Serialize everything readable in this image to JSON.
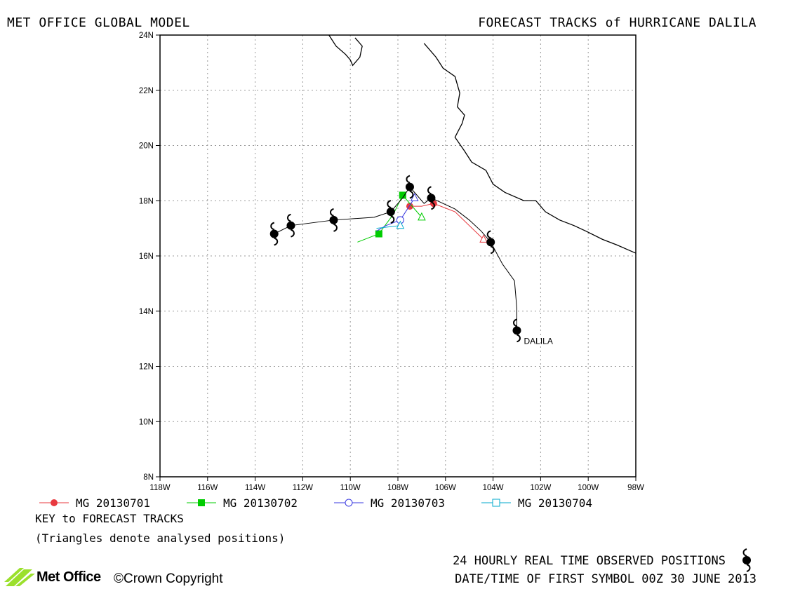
{
  "header": {
    "left_title": "MET OFFICE GLOBAL MODEL",
    "right_title": "FORECAST TRACKS of HURRICANE DALILA"
  },
  "colors": {
    "observed": "#000000",
    "track_20130701": "#e8393f",
    "track_20130702": "#00cc00",
    "track_20130703": "#3a3ae0",
    "track_20130704": "#00aacc",
    "coastline": "#000000",
    "grid": "#9a9a9a"
  },
  "chart_data": {
    "type": "map-tracks",
    "storm_label": "DALILA",
    "x_ticks": [
      "118W",
      "116W",
      "114W",
      "112W",
      "110W",
      "108W",
      "106W",
      "104W",
      "102W",
      "100W",
      "98W"
    ],
    "y_ticks": [
      "8N",
      "10N",
      "12N",
      "14N",
      "16N",
      "18N",
      "20N",
      "22N",
      "24N"
    ],
    "lon_range": [
      -118,
      -98
    ],
    "lat_range": [
      8,
      24
    ],
    "grid": true,
    "observed_track": {
      "name": "24 HOURLY REAL TIME OBSERVED POSITIONS",
      "path": [
        [
          -103,
          13.3
        ],
        [
          -103,
          14.1
        ],
        [
          -103.1,
          15.1
        ],
        [
          -103.6,
          15.7
        ],
        [
          -104.1,
          16.5
        ],
        [
          -104.5,
          16.9
        ],
        [
          -105,
          17.3
        ],
        [
          -105.6,
          17.7
        ],
        [
          -106.6,
          18.1
        ],
        [
          -106.9,
          17.9
        ],
        [
          -107.2,
          18.2
        ],
        [
          -107.5,
          18.5
        ],
        [
          -107.8,
          18.1
        ],
        [
          -108.3,
          17.6
        ],
        [
          -109,
          17.4
        ],
        [
          -110.7,
          17.3
        ],
        [
          -112.5,
          17.1
        ],
        [
          -113.2,
          16.8
        ]
      ],
      "markers": [
        [
          -103,
          13.3
        ],
        [
          -104.1,
          16.5
        ],
        [
          -106.6,
          18.1
        ],
        [
          -107.5,
          18.5
        ],
        [
          -108.3,
          17.6
        ],
        [
          -110.7,
          17.3
        ],
        [
          -112.5,
          17.1
        ],
        [
          -113.2,
          16.8
        ]
      ]
    },
    "series": [
      {
        "name": "MG 20130701",
        "marker": "filled-circle",
        "color": "#e8393f",
        "analysed": [
          -104.4,
          16.6
        ],
        "path": [
          [
            -104.4,
            16.6
          ],
          [
            -105.6,
            17.6
          ],
          [
            -106.5,
            17.9
          ],
          [
            -107,
            17.8
          ],
          [
            -107.5,
            17.8
          ]
        ],
        "markers": [
          [
            -106.5,
            17.9
          ],
          [
            -107.5,
            17.8
          ]
        ]
      },
      {
        "name": "MG 20130702",
        "marker": "filled-square",
        "color": "#00cc00",
        "analysed": [
          -107,
          17.4
        ],
        "path": [
          [
            -107,
            17.4
          ],
          [
            -107.8,
            18.2
          ],
          [
            -108.2,
            17.5
          ],
          [
            -108.8,
            16.8
          ],
          [
            -109.7,
            16.5
          ]
        ],
        "markers": [
          [
            -107.8,
            18.2
          ],
          [
            -108.8,
            16.8
          ]
        ]
      },
      {
        "name": "MG 20130703",
        "marker": "open-circle",
        "color": "#3a3ae0",
        "analysed": [
          -107.3,
          18.1
        ],
        "path": [
          [
            -107.3,
            18.1
          ],
          [
            -107.9,
            17.3
          ],
          [
            -108.5,
            17.1
          ],
          [
            -108.9,
            16.9
          ]
        ],
        "markers": [
          [
            -107.9,
            17.3
          ]
        ]
      },
      {
        "name": "MG 20130704",
        "marker": "open-square",
        "color": "#00aacc",
        "analysed": [
          -107.9,
          17.1
        ],
        "path": [
          [
            -107.9,
            17.1
          ],
          [
            -108.4,
            17.05
          ],
          [
            -108.9,
            17.0
          ]
        ],
        "markers": []
      }
    ],
    "coastlines": [
      [
        [
          -110.9,
          24
        ],
        [
          -110.6,
          23.6
        ],
        [
          -110.2,
          23.3
        ],
        [
          -110,
          23.1
        ],
        [
          -109.9,
          22.9
        ],
        [
          -109.6,
          23.2
        ],
        [
          -109.5,
          23.6
        ],
        [
          -109.8,
          23.9
        ]
      ],
      [
        [
          -106.9,
          23.7
        ],
        [
          -106.4,
          23.2
        ],
        [
          -106.1,
          22.8
        ],
        [
          -105.6,
          22.5
        ],
        [
          -105.4,
          21.9
        ],
        [
          -105.5,
          21.4
        ],
        [
          -105.2,
          21.1
        ],
        [
          -105.3,
          20.8
        ],
        [
          -105.6,
          20.3
        ],
        [
          -105.2,
          19.8
        ],
        [
          -104.9,
          19.4
        ],
        [
          -104.3,
          19.1
        ],
        [
          -104,
          18.6
        ],
        [
          -103.5,
          18.3
        ],
        [
          -102.7,
          18.0
        ],
        [
          -102.2,
          18.0
        ],
        [
          -101.8,
          17.6
        ],
        [
          -101.2,
          17.3
        ],
        [
          -100.6,
          17.1
        ],
        [
          -100.1,
          16.9
        ],
        [
          -99.4,
          16.6
        ],
        [
          -98.8,
          16.4
        ],
        [
          -98,
          16.1
        ]
      ]
    ]
  },
  "legend": {
    "items": [
      "MG 20130701",
      "MG 20130702",
      "MG 20130703",
      "MG 20130704"
    ]
  },
  "notes": {
    "key_title": "KEY to FORECAST TRACKS",
    "triangles_note": "(Triangles denote analysed positions)",
    "observed_note": "24 HOURLY REAL TIME OBSERVED POSITIONS",
    "datetime_note": "DATE/TIME OF FIRST SYMBOL 00Z 30 JUNE 2013"
  },
  "footer": {
    "logo_text": "Met Office",
    "copyright": "©Crown Copyright"
  }
}
